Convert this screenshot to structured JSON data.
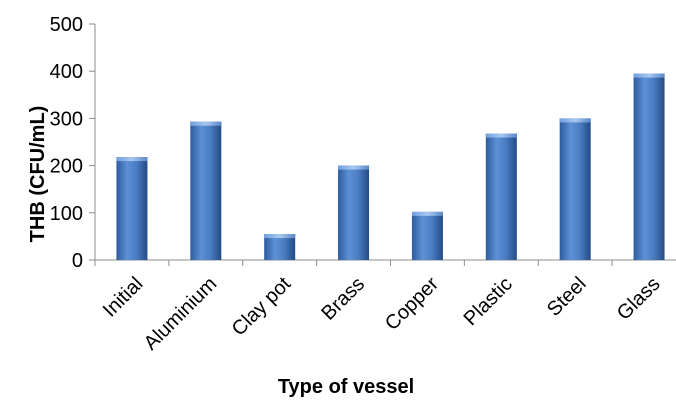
{
  "chart_data": {
    "type": "bar",
    "title": "",
    "xlabel": "Type of vessel",
    "ylabel": "THB (CFU/mL)",
    "ylim": [
      0,
      500
    ],
    "yticks": [
      0,
      100,
      200,
      300,
      400,
      500
    ],
    "categories": [
      "Initial",
      "Aluminium",
      "Clay pot",
      "Brass",
      "Copper",
      "Plastic",
      "Steel",
      "Glass"
    ],
    "values": [
      218,
      293,
      55,
      200,
      102,
      268,
      300,
      395
    ],
    "grid": false,
    "legend": "none",
    "bar_color": "#3f72b8"
  }
}
